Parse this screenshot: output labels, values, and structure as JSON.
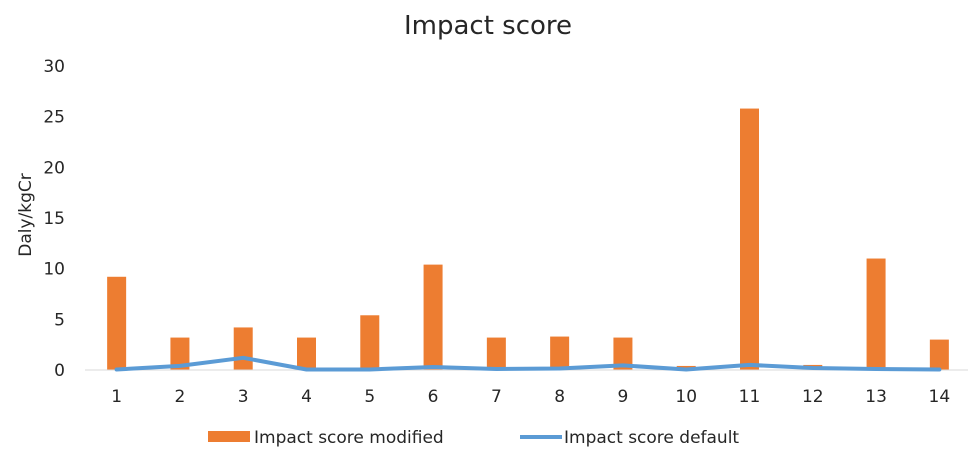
{
  "chart_data": {
    "type": "bar",
    "title": "Impact score",
    "xlabel": "",
    "ylabel": "Daly/kgCr",
    "ylim": [
      0,
      30
    ],
    "yticks": [
      0,
      5,
      10,
      15,
      20,
      25,
      30
    ],
    "grid": false,
    "legend_position": "bottom",
    "categories": [
      "1",
      "2",
      "3",
      "4",
      "5",
      "6",
      "7",
      "8",
      "9",
      "10",
      "11",
      "12",
      "13",
      "14"
    ],
    "series": [
      {
        "name": "Impact score modified",
        "type": "bar",
        "color": "#ed7d31",
        "values": [
          9.2,
          3.2,
          4.2,
          3.2,
          5.4,
          10.4,
          3.2,
          3.3,
          3.2,
          0.4,
          25.8,
          0.5,
          11.0,
          3.0
        ]
      },
      {
        "name": "Impact score default",
        "type": "line",
        "color": "#5b9bd5",
        "values": [
          0.05,
          0.4,
          1.2,
          0.05,
          0.05,
          0.3,
          0.1,
          0.15,
          0.45,
          0.05,
          0.5,
          0.2,
          0.1,
          0.05
        ]
      }
    ]
  }
}
